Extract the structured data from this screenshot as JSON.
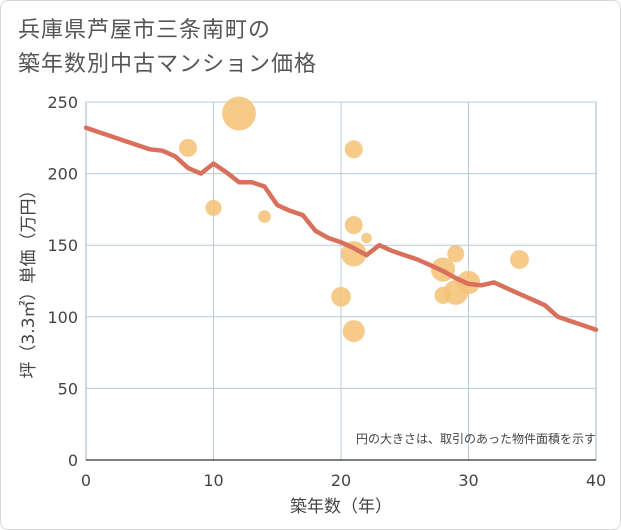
{
  "title": {
    "line1": "兵庫県芦屋市三条南町の",
    "line2": "築年数別中古マンション価格"
  },
  "chart_data": {
    "type": "scatter",
    "title": "兵庫県芦屋市三条南町の築年数別中古マンション価格",
    "xlabel": "築年数（年）",
    "ylabel": "坪（3.3㎡）単価（万円）",
    "xlim": [
      0,
      40
    ],
    "ylim": [
      0,
      250
    ],
    "x_ticks": [
      0,
      10,
      20,
      30,
      40
    ],
    "y_ticks": [
      0,
      50,
      100,
      150,
      200,
      250
    ],
    "grid": true,
    "annotation": "円の大きさは、取引のあった物件面積を示す",
    "points": [
      {
        "x": 8,
        "y": 218,
        "size": 1.0
      },
      {
        "x": 10,
        "y": 176,
        "size": 0.8
      },
      {
        "x": 12,
        "y": 242,
        "size": 3.2
      },
      {
        "x": 14,
        "y": 170,
        "size": 0.5
      },
      {
        "x": 21,
        "y": 217,
        "size": 1.0
      },
      {
        "x": 21,
        "y": 164,
        "size": 1.0
      },
      {
        "x": 21,
        "y": 144,
        "size": 2.0
      },
      {
        "x": 22,
        "y": 155,
        "size": 0.35
      },
      {
        "x": 20,
        "y": 114,
        "size": 1.2
      },
      {
        "x": 21,
        "y": 90,
        "size": 1.5
      },
      {
        "x": 28,
        "y": 133,
        "size": 1.8
      },
      {
        "x": 28,
        "y": 115,
        "size": 0.9
      },
      {
        "x": 29,
        "y": 144,
        "size": 0.9
      },
      {
        "x": 29,
        "y": 117,
        "size": 1.9
      },
      {
        "x": 30,
        "y": 124,
        "size": 1.7
      },
      {
        "x": 34,
        "y": 140,
        "size": 1.1
      }
    ],
    "trend_line": {
      "x": [
        0,
        1,
        2,
        3,
        4,
        5,
        6,
        7,
        8,
        9,
        10,
        11,
        12,
        13,
        14,
        15,
        16,
        17,
        18,
        19,
        20,
        21,
        22,
        23,
        24,
        25,
        26,
        27,
        28,
        29,
        30,
        31,
        32,
        33,
        34,
        35,
        36,
        37,
        38,
        39,
        40
      ],
      "y": [
        232,
        229,
        226,
        223,
        220,
        217,
        216,
        212,
        204,
        200,
        207,
        201,
        194,
        194,
        191,
        178,
        174,
        171,
        160,
        155,
        152,
        148,
        143,
        150,
        146,
        143,
        140,
        136,
        132,
        127,
        123,
        122,
        124,
        120,
        116,
        112,
        108,
        100,
        97,
        94,
        91
      ]
    },
    "colors": {
      "bubble": "#f5c275",
      "trend": "#d9705c",
      "grid": "#b8ccd8",
      "plot_border": "#9fb6c4"
    }
  }
}
